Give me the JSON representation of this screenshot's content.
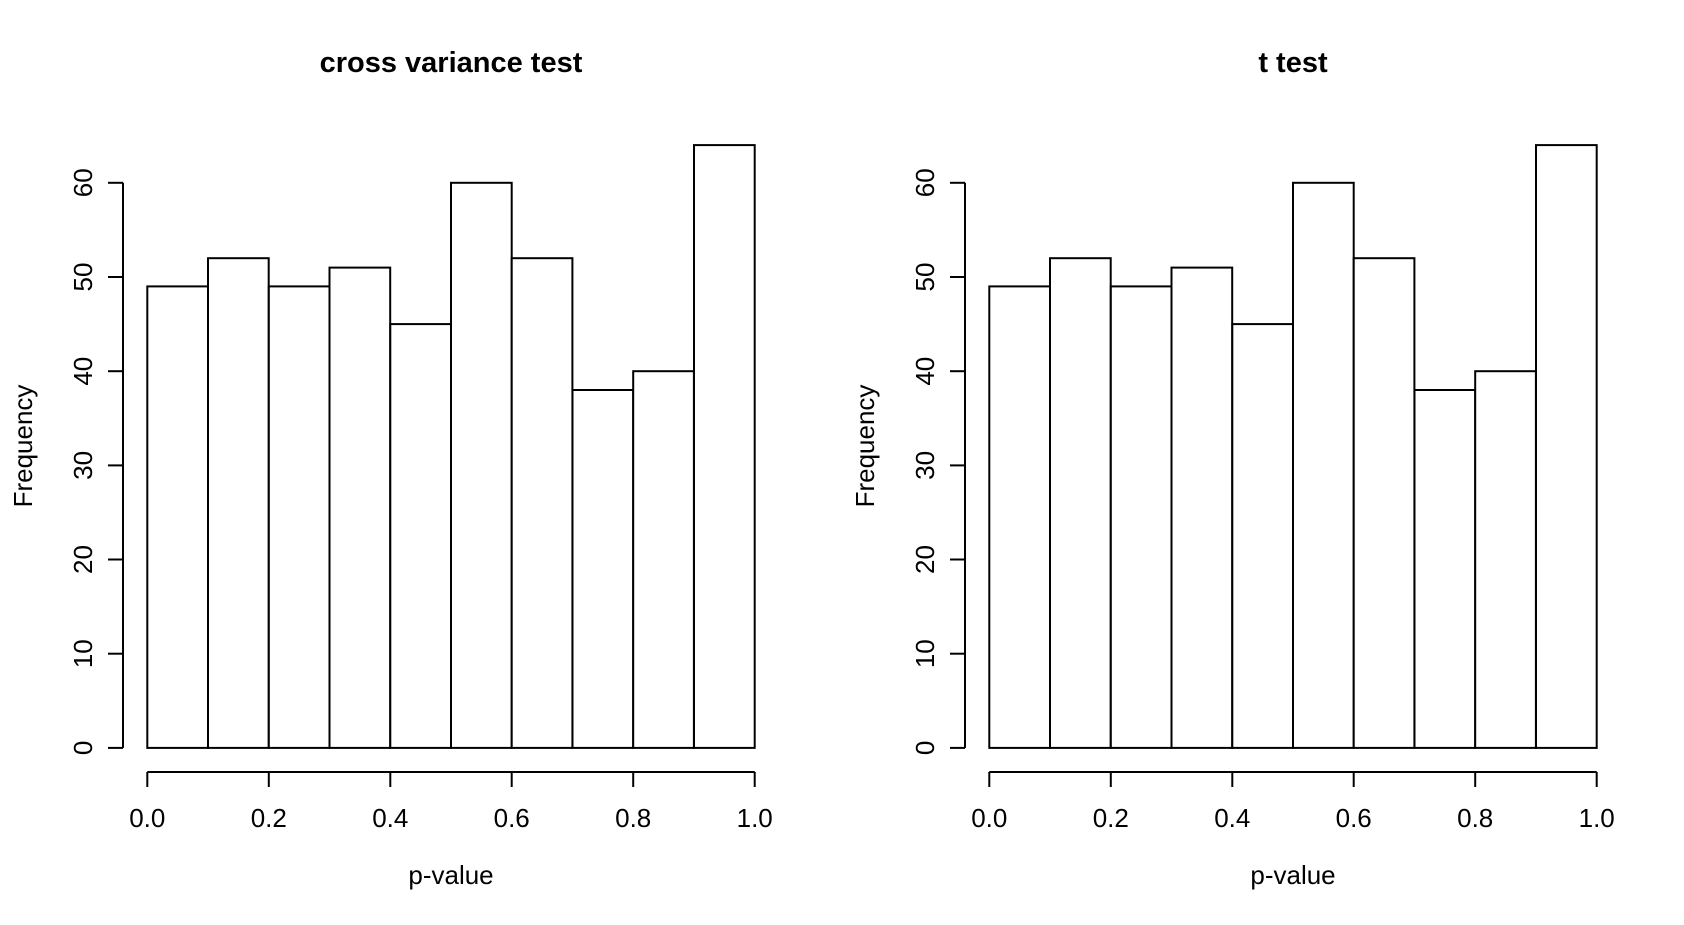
{
  "figure": {
    "background_color": "#ffffff",
    "axis_color": "#000000",
    "text_color": "#000000"
  },
  "chart_data": [
    {
      "type": "bar",
      "subtype": "histogram",
      "title": "cross variance test",
      "xlabel": "p-value",
      "ylabel": "Frequency",
      "bin_edges": [
        0.0,
        0.1,
        0.2,
        0.3,
        0.4,
        0.5,
        0.6,
        0.7,
        0.8,
        0.9,
        1.0
      ],
      "values": [
        49,
        52,
        49,
        51,
        45,
        60,
        52,
        38,
        40,
        64
      ],
      "x_ticks": [
        "0.0",
        "0.2",
        "0.4",
        "0.6",
        "0.8",
        "1.0"
      ],
      "x_tick_values": [
        0.0,
        0.2,
        0.4,
        0.6,
        0.8,
        1.0
      ],
      "y_ticks": [
        "0",
        "10",
        "20",
        "30",
        "40",
        "50",
        "60"
      ],
      "y_tick_values": [
        0,
        10,
        20,
        30,
        40,
        50,
        60
      ],
      "xlim": [
        0.0,
        1.0
      ],
      "ylim": [
        0,
        64
      ],
      "grid": false,
      "legend": null,
      "bar_fill": "#ffffff",
      "bar_stroke": "#000000"
    },
    {
      "type": "bar",
      "subtype": "histogram",
      "title": "t test",
      "xlabel": "p-value",
      "ylabel": "Frequency",
      "bin_edges": [
        0.0,
        0.1,
        0.2,
        0.3,
        0.4,
        0.5,
        0.6,
        0.7,
        0.8,
        0.9,
        1.0
      ],
      "values": [
        49,
        52,
        49,
        51,
        45,
        60,
        52,
        38,
        40,
        64
      ],
      "x_ticks": [
        "0.0",
        "0.2",
        "0.4",
        "0.6",
        "0.8",
        "1.0"
      ],
      "x_tick_values": [
        0.0,
        0.2,
        0.4,
        0.6,
        0.8,
        1.0
      ],
      "y_ticks": [
        "0",
        "10",
        "20",
        "30",
        "40",
        "50",
        "60"
      ],
      "y_tick_values": [
        0,
        10,
        20,
        30,
        40,
        50,
        60
      ],
      "xlim": [
        0.0,
        1.0
      ],
      "ylim": [
        0,
        64
      ],
      "grid": false,
      "legend": null,
      "bar_fill": "#ffffff",
      "bar_stroke": "#000000"
    }
  ]
}
